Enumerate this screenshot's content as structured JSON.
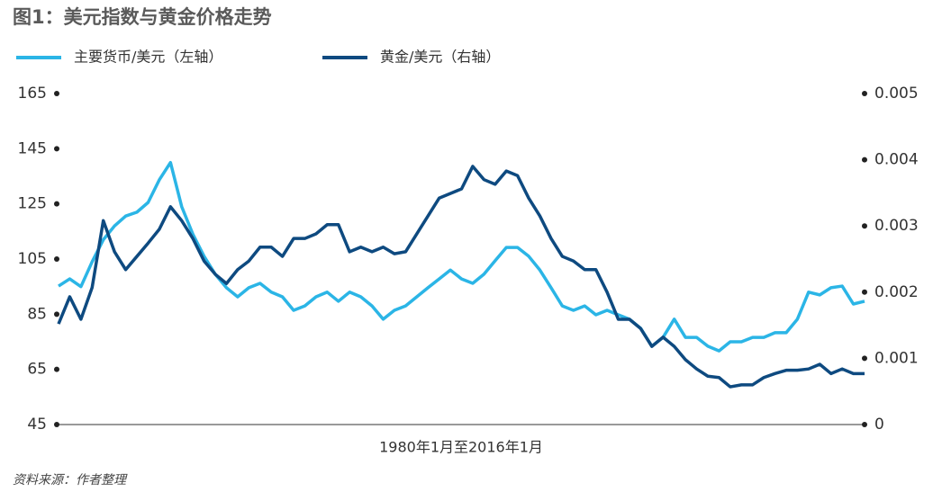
{
  "chart_data": {
    "type": "line",
    "title": "图1：美元指数与黄金价格走势",
    "xlabel": "1980年1月至2016年1月",
    "source": "资料来源：作者整理",
    "ylim": [
      45,
      165
    ],
    "yticks": [
      45,
      65,
      85,
      105,
      125,
      145,
      165
    ],
    "y2lim": [
      0,
      0.005
    ],
    "y2ticks": [
      0,
      0.001,
      0.002,
      0.003,
      0.004,
      0.005
    ],
    "legend": "top-left",
    "series": [
      {
        "name": "主要货币/美元（左轴）",
        "color": "#2bb5e6",
        "values": [
          95.2,
          97.8,
          95,
          104,
          112,
          117,
          120.6,
          122,
          125.5,
          133.7,
          140,
          124,
          114,
          106,
          99.5,
          94.6,
          91.3,
          94.6,
          96.2,
          93,
          91.3,
          86.4,
          88,
          91.3,
          93,
          89.7,
          93,
          91.3,
          88,
          83.2,
          86.4,
          88,
          91.3,
          94.6,
          97.8,
          101,
          97.8,
          96.2,
          99.5,
          104.4,
          109.2,
          109.2,
          106,
          101,
          94.6,
          88,
          86.4,
          88,
          84.8,
          86.4,
          84.8,
          83.2,
          79.9,
          73.4,
          76.6,
          83.2,
          76.6,
          76.6,
          73.4,
          71.7,
          75,
          75,
          76.6,
          76.6,
          78.3,
          78.3,
          83.2,
          93,
          92,
          94.6,
          95.2,
          88.7,
          89.7
        ]
      },
      {
        "name": "黄金/美元（右轴）",
        "color": "#0e4a80",
        "axis": "y2",
        "values": [
          0.00152,
          0.00193,
          0.00159,
          0.00207,
          0.00308,
          0.00261,
          0.00234,
          0.00254,
          0.00274,
          0.00295,
          0.00329,
          0.00308,
          0.00281,
          0.00247,
          0.00227,
          0.00213,
          0.00234,
          0.00247,
          0.00268,
          0.00268,
          0.00254,
          0.00281,
          0.00281,
          0.00288,
          0.00302,
          0.00302,
          0.00261,
          0.00268,
          0.00261,
          0.00268,
          0.00258,
          0.00261,
          0.00288,
          0.00315,
          0.00342,
          0.00349,
          0.00356,
          0.0039,
          0.0037,
          0.00363,
          0.00383,
          0.00376,
          0.00342,
          0.00315,
          0.00281,
          0.00254,
          0.00247,
          0.00234,
          0.00234,
          0.002,
          0.00159,
          0.00159,
          0.00145,
          0.00118,
          0.00132,
          0.00118,
          0.00098,
          0.00084,
          0.00073,
          0.00071,
          0.00057,
          0.0006,
          0.0006,
          0.00071,
          0.00077,
          0.00082,
          0.00082,
          0.00084,
          0.00091,
          0.00077,
          0.00084,
          0.00077,
          0.00077
        ]
      }
    ]
  }
}
